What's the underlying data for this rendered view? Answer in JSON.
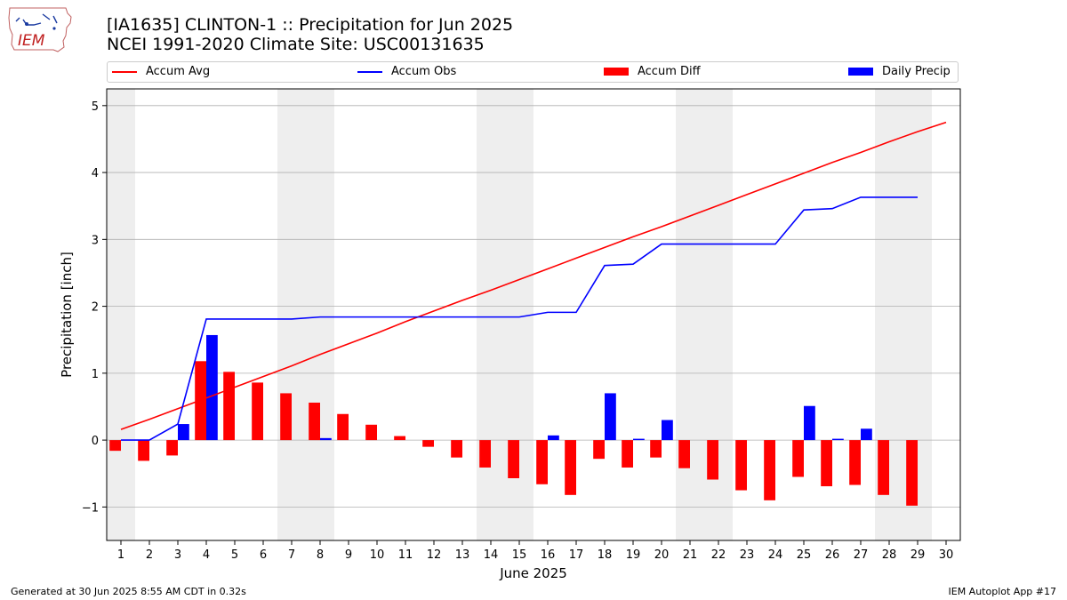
{
  "header": {
    "title_line1": "[IA1635] CLINTON-1 :: Precipitation for Jun 2025",
    "title_line2": "NCEI 1991-2020 Climate Site: USC00131635",
    "logo_text": "IEM"
  },
  "footer": {
    "generated": "Generated at 30 Jun 2025 8:55 AM CDT in 0.32s",
    "app": "IEM Autoplot App #17"
  },
  "colors": {
    "accum_avg": "#ff0000",
    "accum_obs": "#0000ff",
    "accum_diff": "#ff0000",
    "daily_precip": "#0000ff",
    "weekend_shade": "#eeeeee",
    "grid": "#b0b0b0"
  },
  "chart_data": {
    "type": "bar",
    "xlabel": "June 2025",
    "ylabel": "Precipitation [inch]",
    "ylim": [
      -1.5,
      5.25
    ],
    "yticks": [
      -1,
      0,
      1,
      2,
      3,
      4,
      5
    ],
    "grid": "horizontal",
    "legend_placement": "top",
    "legend": [
      "Accum Avg",
      "Accum Obs",
      "Accum Diff",
      "Daily Precip"
    ],
    "days": [
      1,
      2,
      3,
      4,
      5,
      6,
      7,
      8,
      9,
      10,
      11,
      12,
      13,
      14,
      15,
      16,
      17,
      18,
      19,
      20,
      21,
      22,
      23,
      24,
      25,
      26,
      27,
      28,
      29,
      30
    ],
    "weekend_days": [
      1,
      7,
      8,
      14,
      15,
      21,
      22,
      28,
      29
    ],
    "series": [
      {
        "name": "Accum Avg",
        "kind": "line",
        "days": [
          1,
          2,
          3,
          4,
          5,
          6,
          7,
          8,
          9,
          10,
          11,
          12,
          13,
          14,
          15,
          16,
          17,
          18,
          19,
          20,
          21,
          22,
          23,
          24,
          25,
          26,
          27,
          28,
          29,
          30
        ],
        "values": [
          0.16,
          0.31,
          0.47,
          0.63,
          0.79,
          0.95,
          1.11,
          1.28,
          1.44,
          1.6,
          1.77,
          1.93,
          2.09,
          2.24,
          2.4,
          2.56,
          2.72,
          2.88,
          3.04,
          3.19,
          3.35,
          3.51,
          3.67,
          3.83,
          3.99,
          4.15,
          4.3,
          4.46,
          4.61,
          4.75
        ]
      },
      {
        "name": "Accum Obs",
        "kind": "line",
        "days": [
          1,
          2,
          3,
          4,
          5,
          6,
          7,
          8,
          9,
          10,
          11,
          12,
          13,
          14,
          15,
          16,
          17,
          18,
          19,
          20,
          21,
          22,
          23,
          24,
          25,
          26,
          27,
          28,
          29
        ],
        "values": [
          0.0,
          0.0,
          0.24,
          1.81,
          1.81,
          1.81,
          1.81,
          1.84,
          1.84,
          1.84,
          1.84,
          1.84,
          1.84,
          1.84,
          1.84,
          1.91,
          1.91,
          2.61,
          2.63,
          2.93,
          2.93,
          2.93,
          2.93,
          2.93,
          3.44,
          3.46,
          3.63,
          3.63,
          3.63
        ]
      },
      {
        "name": "Accum Diff",
        "kind": "bar",
        "days": [
          1,
          2,
          3,
          4,
          5,
          6,
          7,
          8,
          9,
          10,
          11,
          12,
          13,
          14,
          15,
          16,
          17,
          18,
          19,
          20,
          21,
          22,
          23,
          24,
          25,
          26,
          27,
          28,
          29
        ],
        "values": [
          -0.16,
          -0.31,
          -0.23,
          1.18,
          1.02,
          0.86,
          0.7,
          0.56,
          0.39,
          0.23,
          0.06,
          -0.1,
          -0.26,
          -0.41,
          -0.57,
          -0.66,
          -0.82,
          -0.28,
          -0.41,
          -0.26,
          -0.42,
          -0.59,
          -0.75,
          -0.9,
          -0.55,
          -0.69,
          -0.67,
          -0.82,
          -0.98
        ]
      },
      {
        "name": "Daily Precip",
        "kind": "bar",
        "days": [
          1,
          2,
          3,
          4,
          5,
          6,
          7,
          8,
          9,
          10,
          11,
          12,
          13,
          14,
          15,
          16,
          17,
          18,
          19,
          20,
          21,
          22,
          23,
          24,
          25,
          26,
          27,
          28,
          29
        ],
        "values": [
          0,
          0,
          0.24,
          1.57,
          0,
          0,
          0,
          0.03,
          0,
          0,
          0,
          0,
          0,
          0,
          0,
          0.07,
          0,
          0.7,
          0.02,
          0.3,
          0,
          0,
          0,
          0,
          0.51,
          0.02,
          0.17,
          0,
          0
        ]
      }
    ]
  }
}
